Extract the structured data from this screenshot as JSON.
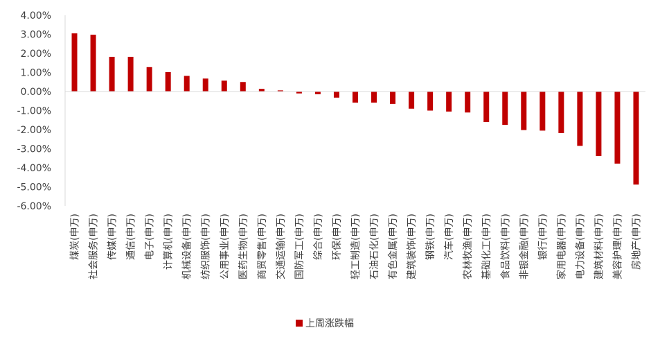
{
  "chart_data": {
    "type": "bar",
    "categories": [
      "煤炭(申万)",
      "社会服务(申万)",
      "传媒(申万)",
      "通信(申万)",
      "电子(申万)",
      "计算机(申万)",
      "机械设备(申万)",
      "纺织服饰(申万)",
      "公用事业(申万)",
      "医药生物(申万)",
      "商贸零售(申万)",
      "交通运输(申万)",
      "国防军工(申万)",
      "综合(申万)",
      "环保(申万)",
      "轻工制造(申万)",
      "石油石化(申万)",
      "有色金属(申万)",
      "建筑装饰(申万)",
      "钢铁(申万)",
      "汽车(申万)",
      "农林牧渔(申万)",
      "基础化工(申万)",
      "食品饮料(申万)",
      "非银金融(申万)",
      "银行(申万)",
      "家用电器(申万)",
      "电力设备(申万)",
      "建筑材料(申万)",
      "美容护理(申万)",
      "房地产(申万)"
    ],
    "series": [
      {
        "name": "上周涨跌幅",
        "color": "#C00000",
        "values": [
          3.05,
          2.98,
          1.82,
          1.82,
          1.28,
          1.02,
          0.82,
          0.68,
          0.57,
          0.5,
          0.14,
          0.06,
          -0.1,
          -0.14,
          -0.32,
          -0.58,
          -0.58,
          -0.65,
          -0.9,
          -1.0,
          -1.05,
          -1.1,
          -1.6,
          -1.75,
          -2.02,
          -2.05,
          -2.18,
          -2.85,
          -3.38,
          -3.78,
          -4.88
        ]
      }
    ],
    "ylim": [
      -6,
      4
    ],
    "yticks": [
      "4.00%",
      "3.00%",
      "2.00%",
      "1.00%",
      "0.00%",
      "-1.00%",
      "-2.00%",
      "-3.00%",
      "-4.00%",
      "-5.00%",
      "-6.00%"
    ],
    "grid": false,
    "legend": "bottom"
  }
}
